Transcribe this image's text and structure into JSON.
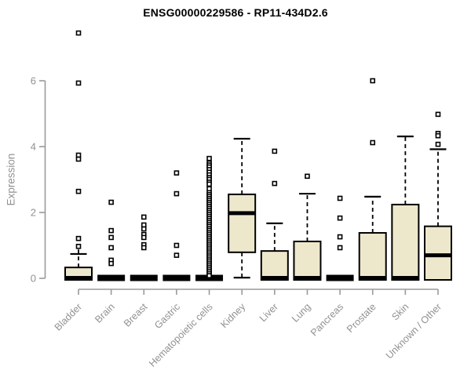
{
  "chart_data": {
    "type": "boxplot",
    "title": "ENSG00000229586 - RP11-434D2.6",
    "ylabel": "Expression",
    "xlabel": "",
    "yticks": [
      0,
      2,
      4,
      6
    ],
    "ylim": [
      0,
      6
    ],
    "ymax_data": 7.45,
    "grid": false,
    "marker": "open-square",
    "categories": [
      "Bladder",
      "Brain",
      "Breast",
      "Gastric",
      "Hematopoietic cells",
      "Kidney",
      "Liver",
      "Lung",
      "Pancreas",
      "Prostate",
      "Skin",
      "Unknown / Other"
    ],
    "series": [
      {
        "label": "Bladder",
        "q1": 0,
        "median": 0,
        "q3": 0.33,
        "whisker_low": null,
        "whisker_high": 0.74,
        "whisker_stub": 0.95,
        "outliers": [
          7.45,
          5.93,
          3.74,
          3.62,
          2.64,
          1.21,
          0.97
        ]
      },
      {
        "label": "Brain",
        "q1": 0,
        "median": 0,
        "q3": 0,
        "whisker_low": null,
        "whisker_high": null,
        "outliers": [
          2.31,
          1.45,
          1.24,
          0.93,
          0.55,
          0.45
        ]
      },
      {
        "label": "Breast",
        "q1": 0,
        "median": 0,
        "q3": 0,
        "whisker_low": null,
        "whisker_high": null,
        "outliers": [
          1.86,
          1.62,
          1.5,
          1.33,
          1.24,
          1.02,
          0.93
        ]
      },
      {
        "label": "Gastric",
        "q1": 0,
        "median": 0,
        "q3": 0,
        "whisker_low": null,
        "whisker_high": null,
        "outliers": [
          3.2,
          2.57,
          1.0,
          0.7
        ]
      },
      {
        "label": "Hematopoietic cells",
        "q1": 0,
        "median": 0,
        "q3": 0,
        "whisker_low": null,
        "whisker_high": null,
        "outliers": [
          3.64,
          3.5,
          3.44,
          3.38,
          3.3,
          3.22,
          3.14,
          3.06,
          3.0,
          2.92,
          2.86,
          2.72,
          2.6,
          2.54,
          2.48,
          2.42,
          2.36,
          2.3,
          2.24,
          2.18,
          2.12,
          2.06,
          2.0,
          1.94,
          1.88,
          1.82,
          1.76,
          1.7,
          1.64,
          1.58,
          1.52,
          1.46,
          1.4,
          1.34,
          1.28,
          1.22,
          1.16,
          1.1,
          1.04,
          0.98,
          0.92,
          0.86,
          0.8,
          0.74,
          0.68,
          0.62,
          0.56,
          0.5,
          0.44,
          0.38,
          0.32,
          0.26,
          0.2,
          0.14,
          0.08
        ]
      },
      {
        "label": "Kidney",
        "q1": 0.79,
        "median": 1.98,
        "q3": 2.55,
        "whisker_low": 0.02,
        "whisker_high": 4.24,
        "outliers": []
      },
      {
        "label": "Liver",
        "q1": 0,
        "median": 0,
        "q3": 0.83,
        "whisker_low": null,
        "whisker_high": 1.67,
        "outliers": [
          3.86,
          2.88
        ]
      },
      {
        "label": "Lung",
        "q1": 0,
        "median": 0,
        "q3": 1.12,
        "whisker_low": null,
        "whisker_high": 2.57,
        "outliers": [
          3.1
        ]
      },
      {
        "label": "Pancreas",
        "q1": 0,
        "median": 0,
        "q3": 0,
        "whisker_low": null,
        "whisker_high": null,
        "outliers": [
          2.43,
          1.83,
          1.26,
          0.93
        ]
      },
      {
        "label": "Prostate",
        "q1": 0,
        "median": 0,
        "q3": 1.38,
        "whisker_low": null,
        "whisker_high": 2.48,
        "outliers": [
          6.0,
          4.12
        ]
      },
      {
        "label": "Skin",
        "q1": 0,
        "median": 0,
        "q3": 2.24,
        "whisker_low": null,
        "whisker_high": 4.31,
        "outliers": []
      },
      {
        "label": "Unknown / Other",
        "q1": 0,
        "median": 0.7,
        "q3": 1.58,
        "whisker_low": null,
        "whisker_high": 3.92,
        "outliers": [
          4.98,
          4.4,
          4.33,
          4.07
        ]
      }
    ],
    "colors": {
      "box_fill": "#EDE8CC",
      "box_border": "#000000",
      "median": "#000000",
      "outlier": "#000000",
      "axis_line": "#9a9a9a",
      "axis_text": "#919191",
      "title_text": "#000000",
      "background": "#ffffff"
    }
  }
}
